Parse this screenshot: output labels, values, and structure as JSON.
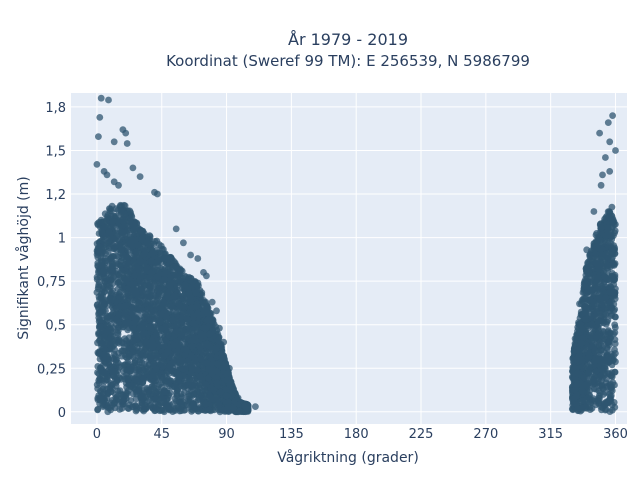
{
  "chart_data": {
    "type": "scatter",
    "title_line1": "År 1979 - 2019",
    "title_line2": "Koordinat (Sweref 99 TM): E 256539, N 5986799",
    "xlabel": "Vågriktning (grader)",
    "ylabel": "Signifikant våghöjd (m)",
    "xlim": [
      -18,
      368
    ],
    "ylim": [
      -0.07,
      1.83
    ],
    "x_ticks": [
      0,
      45,
      90,
      135,
      180,
      225,
      270,
      315,
      360
    ],
    "x_tick_labels": [
      "0",
      "45",
      "90",
      "135",
      "180",
      "225",
      "270",
      "315",
      "360"
    ],
    "y_ticks": [
      0,
      0.25,
      0.5,
      0.75,
      1,
      1.25,
      1.5,
      1.75
    ],
    "y_tick_labels": [
      "0",
      "0,25",
      "0,5",
      "0,75",
      "1",
      "1,2",
      "1,5",
      "1,8"
    ],
    "grid": true,
    "legend": "none",
    "colors": {
      "marker": "#2f5670",
      "plot_bg": "#e5ecf6",
      "grid": "#ffffff",
      "text": "#2a3f5f"
    },
    "series": [
      {
        "envelope_max_height": [
          [
            0,
            1.08
          ],
          [
            10,
            1.18
          ],
          [
            20,
            1.2
          ],
          [
            30,
            1.05
          ],
          [
            40,
            1.0
          ],
          [
            50,
            0.9
          ],
          [
            60,
            0.8
          ],
          [
            70,
            0.75
          ],
          [
            80,
            0.55
          ],
          [
            86,
            0.4
          ],
          [
            92,
            0.2
          ],
          [
            98,
            0.06
          ],
          [
            105,
            0.04
          ],
          [
            330,
            0.3
          ],
          [
            335,
            0.55
          ],
          [
            340,
            0.85
          ],
          [
            345,
            1.0
          ],
          [
            350,
            1.1
          ],
          [
            355,
            1.15
          ],
          [
            360,
            1.2
          ]
        ],
        "outliers": [
          [
            3,
            1.8
          ],
          [
            8,
            1.79
          ],
          [
            2,
            1.69
          ],
          [
            1,
            1.58
          ],
          [
            12,
            1.55
          ],
          [
            18,
            1.62
          ],
          [
            20,
            1.6
          ],
          [
            21,
            1.54
          ],
          [
            0,
            1.42
          ],
          [
            5,
            1.38
          ],
          [
            25,
            1.4
          ],
          [
            30,
            1.35
          ],
          [
            40,
            1.26
          ],
          [
            42,
            1.25
          ],
          [
            12,
            1.32
          ],
          [
            15,
            1.3
          ],
          [
            7,
            1.36
          ],
          [
            55,
            1.05
          ],
          [
            60,
            0.97
          ],
          [
            65,
            0.9
          ],
          [
            70,
            0.88
          ],
          [
            74,
            0.8
          ],
          [
            76,
            0.78
          ],
          [
            80,
            0.63
          ],
          [
            83,
            0.58
          ],
          [
            85,
            0.48
          ],
          [
            88,
            0.4
          ],
          [
            92,
            0.25
          ],
          [
            98,
            0.08
          ],
          [
            110,
            0.03
          ],
          [
            349,
            1.6
          ],
          [
            355,
            1.66
          ],
          [
            358,
            1.7
          ],
          [
            356,
            1.55
          ],
          [
            360,
            1.5
          ],
          [
            353,
            1.46
          ],
          [
            356,
            1.38
          ],
          [
            351,
            1.36
          ],
          [
            350,
            1.3
          ],
          [
            345,
            1.15
          ],
          [
            340,
            0.93
          ],
          [
            335,
            0.62
          ],
          [
            332,
            0.42
          ],
          [
            330,
            0.2
          ],
          [
            333,
            0.3
          ]
        ]
      }
    ]
  }
}
